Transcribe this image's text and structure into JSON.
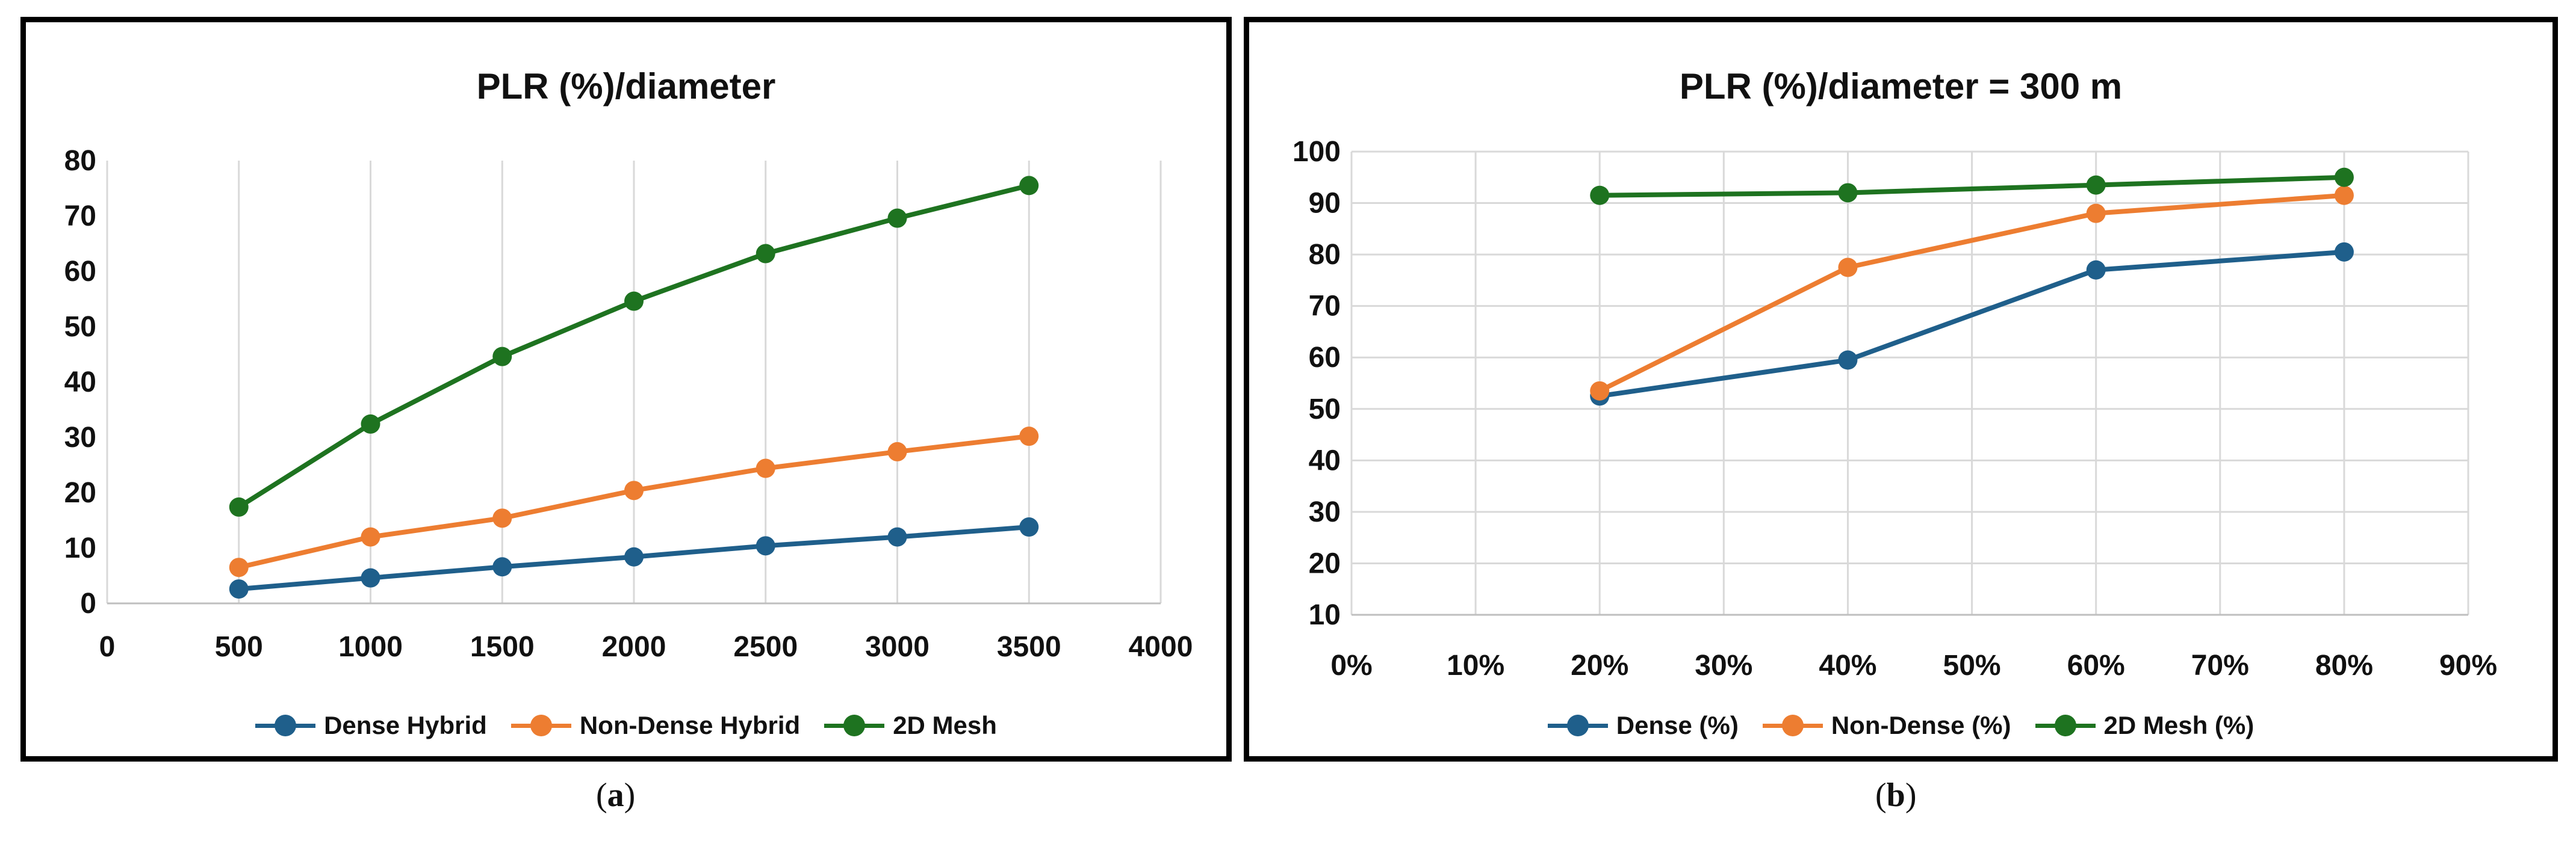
{
  "chart_data": [
    {
      "type": "line",
      "title": "PLR (%)/diameter",
      "xlabel": "",
      "ylabel": "",
      "x": [
        500,
        1000,
        1500,
        2000,
        2500,
        3000,
        3500
      ],
      "xlim": [
        0,
        4000
      ],
      "ylim": [
        0,
        80
      ],
      "x_ticks": [
        "0",
        "500",
        "1000",
        "1500",
        "2000",
        "2500",
        "3000",
        "3500",
        "4000"
      ],
      "y_ticks": [
        "0",
        "10",
        "20",
        "30",
        "40",
        "50",
        "60",
        "70",
        "80"
      ],
      "grid": "vertical",
      "legend_position": "bottom",
      "series": [
        {
          "name": "Dense Hybrid",
          "color": "#1f5f8b",
          "values": [
            2.6,
            4.6,
            6.6,
            8.4,
            10.4,
            12.0,
            13.8
          ]
        },
        {
          "name": "Non-Dense Hybrid",
          "color": "#ed7d31",
          "values": [
            6.5,
            12.0,
            15.4,
            20.4,
            24.4,
            27.4,
            30.2
          ]
        },
        {
          "name": "2D Mesh",
          "color": "#1e7320",
          "values": [
            17.4,
            32.4,
            44.6,
            54.6,
            63.2,
            69.6,
            75.5
          ]
        }
      ]
    },
    {
      "type": "line",
      "title": "PLR (%)/diameter = 300 m",
      "xlabel": "",
      "ylabel": "",
      "x": [
        20,
        40,
        60,
        80
      ],
      "xlim": [
        0,
        90
      ],
      "ylim": [
        10,
        100
      ],
      "x_ticks": [
        "0%",
        "10%",
        "20%",
        "30%",
        "40%",
        "50%",
        "60%",
        "70%",
        "80%",
        "90%"
      ],
      "y_ticks": [
        "10",
        "20",
        "30",
        "40",
        "50",
        "60",
        "70",
        "80",
        "90",
        "100"
      ],
      "grid": "both",
      "legend_position": "bottom",
      "series": [
        {
          "name": "Dense (%)",
          "color": "#1f5f8b",
          "values": [
            52.5,
            59.5,
            77.0,
            80.5
          ]
        },
        {
          "name": "Non-Dense (%)",
          "color": "#ed7d31",
          "values": [
            53.5,
            77.5,
            88.0,
            91.5
          ]
        },
        {
          "name": "2D Mesh (%)",
          "color": "#1e7320",
          "values": [
            91.5,
            92.0,
            93.5,
            95.0
          ]
        }
      ]
    }
  ],
  "captions": [
    "a",
    "b"
  ]
}
